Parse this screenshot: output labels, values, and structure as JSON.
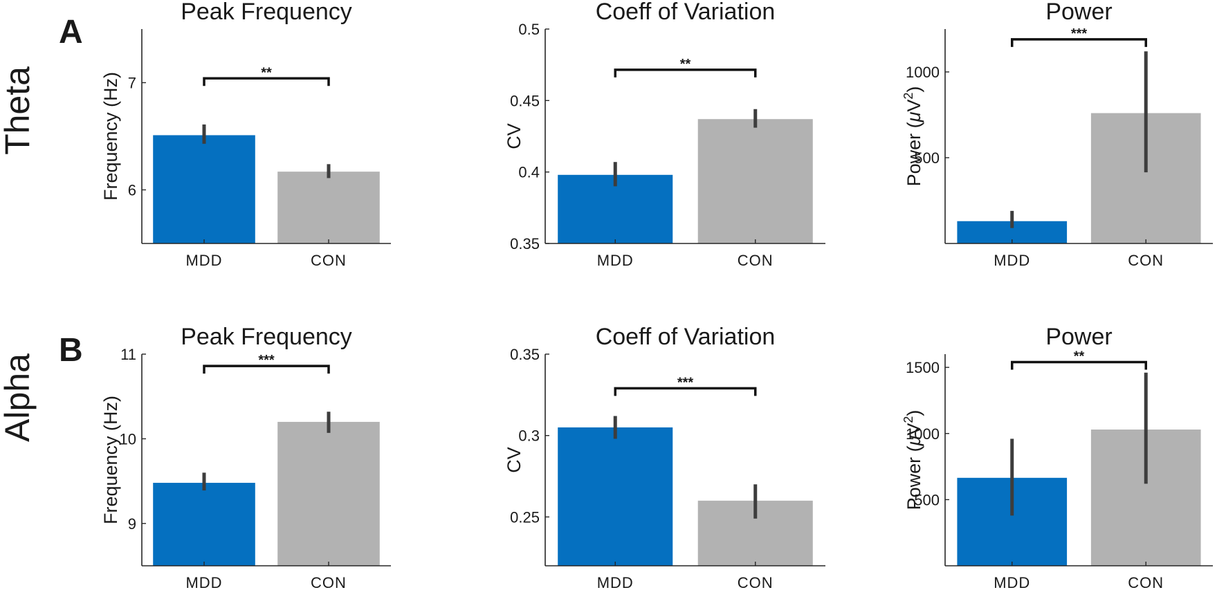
{
  "colors": {
    "MDD": "#0570c0",
    "CON": "#b2b2b2",
    "errorbar": "#3d3d3d",
    "axis": "#262626"
  },
  "rows": [
    {
      "letter": "A",
      "band": "Theta"
    },
    {
      "letter": "B",
      "band": "Alpha"
    }
  ],
  "chart_data": [
    {
      "type": "bar",
      "band": "Theta",
      "title": "Peak Frequency",
      "ylabel": "Frequency (Hz)",
      "categories": [
        "MDD",
        "CON"
      ],
      "values": [
        6.51,
        6.17
      ],
      "errors": [
        [
          6.43,
          6.61
        ],
        [
          6.11,
          6.24
        ]
      ],
      "ylim": [
        5.5,
        7.5
      ],
      "yticks": [
        6,
        7
      ],
      "ytick_labels": [
        "6",
        "7"
      ],
      "significance": {
        "text": "**",
        "y": 7.04
      }
    },
    {
      "type": "bar",
      "band": "Theta",
      "title": "Coeff of Variation",
      "ylabel": "CV",
      "categories": [
        "MDD",
        "CON"
      ],
      "values": [
        0.398,
        0.437
      ],
      "errors": [
        [
          0.39,
          0.407
        ],
        [
          0.431,
          0.444
        ]
      ],
      "ylim": [
        0.35,
        0.5
      ],
      "yticks": [
        0.35,
        0.4,
        0.45,
        0.5
      ],
      "ytick_labels": [
        "0.35",
        "0.4",
        "0.45",
        "0.5"
      ],
      "significance": {
        "text": "**",
        "y": 0.4715
      }
    },
    {
      "type": "bar",
      "band": "Theta",
      "title": "Power",
      "ylabel": "Power (μV²)",
      "ylabel_parts": {
        "main": "Power (",
        "mu": "μ",
        "unit": "V",
        "sup": "2",
        "close": ")"
      },
      "categories": [
        "MDD",
        "CON"
      ],
      "values": [
        130,
        760
      ],
      "errors": [
        [
          90,
          190
        ],
        [
          415,
          1120
        ]
      ],
      "ylim": [
        0,
        1250
      ],
      "yticks": [
        500,
        1000
      ],
      "ytick_labels": [
        "500",
        "1000"
      ],
      "significance": {
        "text": "***",
        "y": 1190
      }
    },
    {
      "type": "bar",
      "band": "Alpha",
      "title": "Peak Frequency",
      "ylabel": "Frequency (Hz)",
      "categories": [
        "MDD",
        "CON"
      ],
      "values": [
        9.48,
        10.2
      ],
      "errors": [
        [
          9.39,
          9.6
        ],
        [
          10.07,
          10.32
        ]
      ],
      "ylim": [
        8.5,
        11
      ],
      "yticks": [
        9,
        10,
        11
      ],
      "ytick_labels": [
        "9",
        "10",
        "11"
      ],
      "significance": {
        "text": "***",
        "y": 10.86
      }
    },
    {
      "type": "bar",
      "band": "Alpha",
      "title": "Coeff of Variation",
      "ylabel": "CV",
      "categories": [
        "MDD",
        "CON"
      ],
      "values": [
        0.305,
        0.26
      ],
      "errors": [
        [
          0.298,
          0.312
        ],
        [
          0.249,
          0.27
        ]
      ],
      "ylim": [
        0.22,
        0.35
      ],
      "yticks": [
        0.25,
        0.3,
        0.35
      ],
      "ytick_labels": [
        "0.25",
        "0.3",
        "0.35"
      ],
      "significance": {
        "text": "***",
        "y": 0.329
      }
    },
    {
      "type": "bar",
      "band": "Alpha",
      "title": "Power",
      "ylabel": "Power (μV²)",
      "ylabel_parts": {
        "main": "Power (",
        "mu": "μ",
        "unit": "V",
        "sup": "2",
        "close": ")"
      },
      "categories": [
        "MDD",
        "CON"
      ],
      "values": [
        665,
        1030
      ],
      "errors": [
        [
          380,
          960
        ],
        [
          620,
          1460
        ]
      ],
      "ylim": [
        0,
        1600
      ],
      "yticks": [
        500,
        1000,
        1500
      ],
      "ytick_labels": [
        "500",
        "1000",
        "1500"
      ],
      "significance": {
        "text": "**",
        "y": 1540
      }
    }
  ]
}
